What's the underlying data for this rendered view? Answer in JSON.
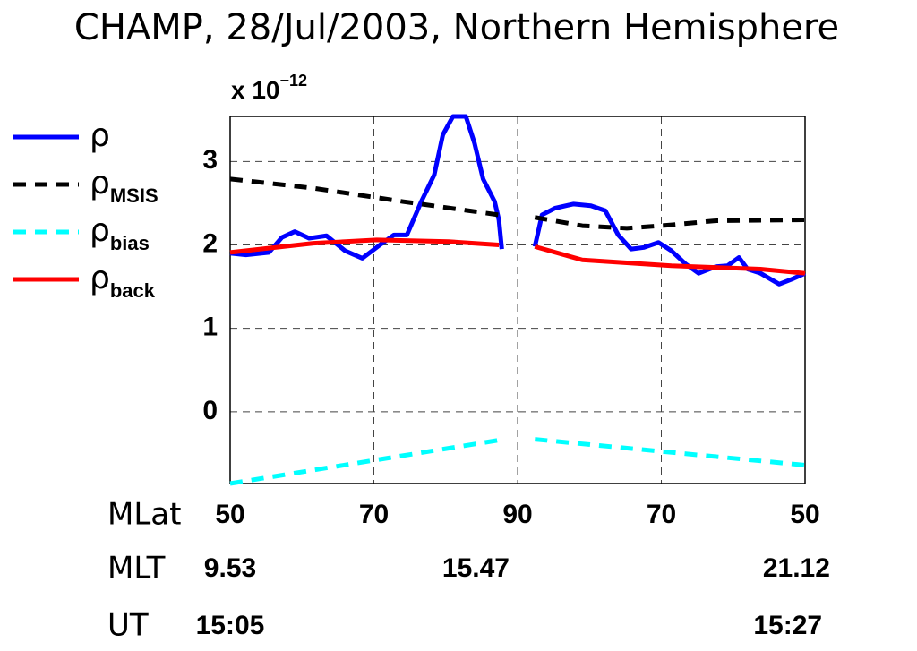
{
  "chart_data": {
    "type": "line",
    "title": "CHAMP, 28/Jul/2003, Northern Hemisphere",
    "multiplier": {
      "base": "x 10",
      "exponent": "−12"
    },
    "xlim": [
      0,
      4
    ],
    "xticks": [
      {
        "value": 0,
        "label": "50"
      },
      {
        "value": 1,
        "label": "70"
      },
      {
        "value": 2,
        "label": "90"
      },
      {
        "value": 3,
        "label": "70"
      },
      {
        "value": 4,
        "label": "50"
      }
    ],
    "xticks_row_label": "MLat",
    "extra_rows": [
      {
        "label": "MLT",
        "ticks": [
          {
            "value": 0,
            "label": "9.53"
          },
          {
            "value": 1.71,
            "label": "15.47"
          },
          {
            "value": 3.94,
            "label": "21.12"
          }
        ]
      },
      {
        "label": "UT",
        "ticks": [
          {
            "value": 0,
            "label": "15:05"
          },
          {
            "value": 3.88,
            "label": "15:27"
          }
        ]
      }
    ],
    "ylim": [
      -0.86,
      3.54
    ],
    "yticks": [
      0,
      1,
      2,
      3
    ],
    "grid": true,
    "legend": "left",
    "series": [
      {
        "name": "ρ",
        "color": "#0000ff",
        "dash": false,
        "x": [
          0,
          0.11,
          0.27,
          0.36,
          0.45,
          0.55,
          0.67,
          0.8,
          0.92,
          1.05,
          1.14,
          1.23,
          1.33,
          1.42,
          1.48,
          1.55,
          1.64,
          1.7,
          1.76,
          1.84,
          1.87,
          1.89,
          null,
          2.12,
          2.17,
          2.26,
          2.39,
          2.51,
          2.61,
          2.7,
          2.79,
          2.88,
          2.98,
          3.07,
          3.17,
          3.26,
          3.38,
          3.46,
          3.54,
          3.6,
          3.69,
          3.82,
          3.91,
          4
        ],
        "values": [
          1.9,
          1.88,
          1.91,
          2.09,
          2.16,
          2.08,
          2.11,
          1.93,
          1.84,
          2.01,
          2.12,
          2.12,
          2.52,
          2.84,
          3.32,
          3.54,
          3.54,
          3.22,
          2.79,
          2.52,
          2.3,
          1.95,
          null,
          1.98,
          2.36,
          2.44,
          2.49,
          2.47,
          2.41,
          2.12,
          1.95,
          1.97,
          2.03,
          1.93,
          1.77,
          1.66,
          1.74,
          1.75,
          1.85,
          1.71,
          1.66,
          1.53,
          1.59,
          1.66
        ]
      },
      {
        "name": "ρ",
        "sub": "MSIS",
        "color": "#000000",
        "dash": true,
        "x": [
          0,
          0.58,
          1.2,
          1.87,
          null,
          2.12,
          2.45,
          2.76,
          3.07,
          3.38,
          4
        ],
        "values": [
          2.79,
          2.68,
          2.52,
          2.36,
          null,
          2.33,
          2.23,
          2.2,
          2.24,
          2.29,
          2.3
        ]
      },
      {
        "name": "ρ",
        "sub": "bias",
        "color": "#00ffff",
        "dash": true,
        "x": [
          0,
          1.87,
          null,
          2.12,
          4
        ],
        "values": [
          -0.86,
          -0.34,
          null,
          -0.33,
          -0.64
        ]
      },
      {
        "name": "ρ",
        "sub": "back",
        "color": "#ff0000",
        "dash": false,
        "x": [
          0,
          0.58,
          1.02,
          1.52,
          1.87,
          null,
          2.12,
          2.45,
          3.07,
          3.69,
          4
        ],
        "values": [
          1.91,
          2.02,
          2.06,
          2.04,
          2.0,
          null,
          1.98,
          1.82,
          1.75,
          1.71,
          1.66
        ]
      }
    ]
  }
}
